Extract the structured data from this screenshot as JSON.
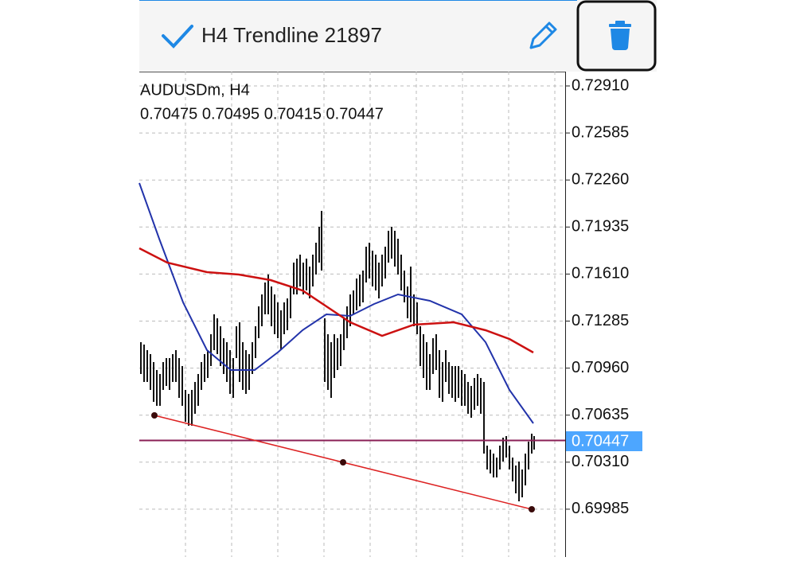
{
  "toolbar": {
    "title": "H4 Trendline 21897"
  },
  "chart": {
    "symbol": "AUDUSDm, H4",
    "ohlc": "0.70475 0.70495 0.70415 0.70447",
    "price_scale": [
      "0.72910",
      "0.72585",
      "0.72260",
      "0.71935",
      "0.71610",
      "0.71285",
      "0.70960",
      "0.70635",
      "0.70310",
      "0.69985"
    ],
    "current_price": "0.70447"
  }
}
